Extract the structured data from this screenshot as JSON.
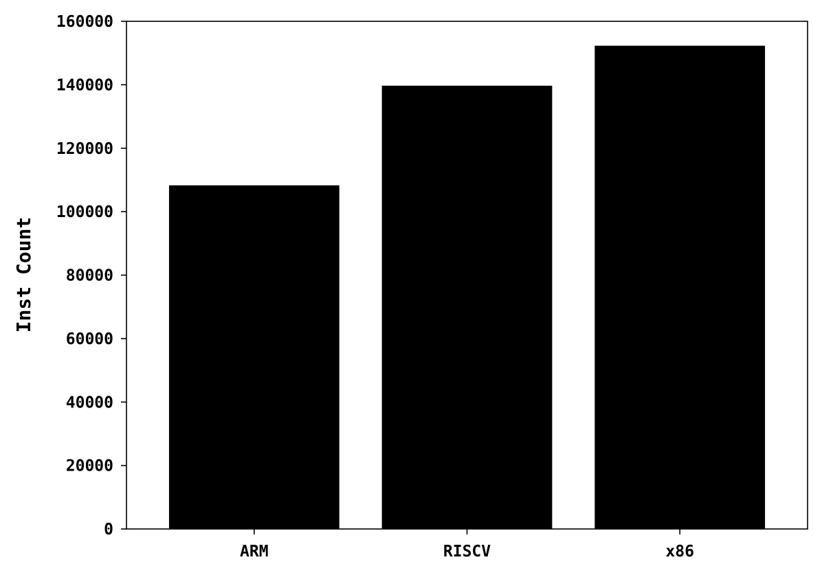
{
  "chart_data": {
    "type": "bar",
    "title": "",
    "xlabel": "",
    "ylabel": "Inst Count",
    "categories": [
      "ARM",
      "RISCV",
      "x86"
    ],
    "values": [
      108300,
      139700,
      152300
    ],
    "ylim": [
      0,
      160000
    ],
    "yticks": [
      0,
      20000,
      40000,
      60000,
      80000,
      100000,
      120000,
      140000,
      160000
    ],
    "ytick_labels": [
      "0",
      "20000",
      "40000",
      "60000",
      "80000",
      "100000",
      "120000",
      "140000",
      "160000"
    ],
    "bar_color": "#000000",
    "grid": false,
    "legend": "none"
  }
}
